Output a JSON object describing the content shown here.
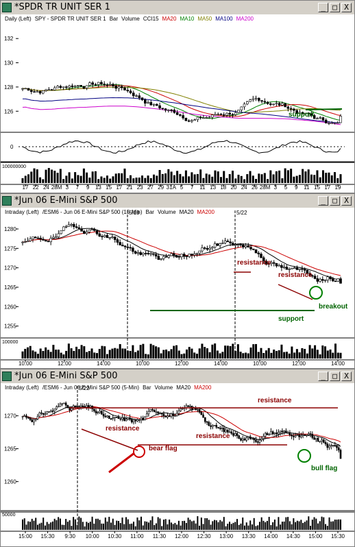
{
  "windows": [
    {
      "title": "*SPDR TR UNIT SER 1",
      "controls": [
        "_",
        "□",
        "X"
      ],
      "subtitle": [
        {
          "t": "Daily (Left)",
          "c": "#000000"
        },
        {
          "t": "SPY - SPDR TR UNIT SER 1",
          "c": "#000000"
        },
        {
          "t": "Bar",
          "c": "#000000"
        },
        {
          "t": "Volume",
          "c": "#000000"
        },
        {
          "t": "CCI15",
          "c": "#000000"
        },
        {
          "t": "MA20",
          "c": "#cc0000"
        },
        {
          "t": "MA10",
          "c": "#008000"
        },
        {
          "t": "MA50",
          "c": "#808000"
        },
        {
          "t": "MA100",
          "c": "#000080"
        },
        {
          "t": "MA200",
          "c": "#cc00cc"
        }
      ]
    },
    {
      "title": "*Jun 06  E-Mini S&P 500",
      "controls": [
        "_",
        "□",
        "X"
      ],
      "subtitle": [
        {
          "t": "Intraday (Left)",
          "c": "#000000"
        },
        {
          "t": "/ESM6 - Jun 06  E-Mini S&P 500 (15-Min)",
          "c": "#000000"
        },
        {
          "t": "Bar",
          "c": "#000000"
        },
        {
          "t": "Volume",
          "c": "#000000"
        },
        {
          "t": "MA20",
          "c": "#000000"
        },
        {
          "t": "MA200",
          "c": "#cc0000"
        }
      ]
    },
    {
      "title": "*Jun 06  E-Mini S&P 500",
      "controls": [
        "_",
        "□",
        "X"
      ],
      "subtitle": [
        {
          "t": "Intraday (Left)",
          "c": "#000000"
        },
        {
          "t": "/ESM6 - Jun 06  E-Mini S&P 500 (5-Min)",
          "c": "#000000"
        },
        {
          "t": "Bar",
          "c": "#000000"
        },
        {
          "t": "Volume",
          "c": "#000000"
        },
        {
          "t": "MA20",
          "c": "#000000"
        },
        {
          "t": "MA200",
          "c": "#cc0000"
        }
      ]
    }
  ],
  "chart_data": [
    {
      "type": "bar",
      "kind": "ohlc-price",
      "timeframe": "daily",
      "y_ticks": [
        126,
        128,
        130,
        132
      ],
      "ylim": [
        124.6,
        133.2
      ],
      "x_ticks": [
        "17",
        "22",
        "24",
        "28M",
        "3",
        "7",
        "9",
        "13",
        "15",
        "17",
        "21",
        "23",
        "27",
        "29",
        "31A",
        "5",
        "7",
        "11",
        "13",
        "18",
        "20",
        "24",
        "26",
        "28M",
        "3",
        "5",
        "9",
        "11",
        "15",
        "17",
        "19"
      ],
      "close_start": 127.9,
      "close_end": 125.6,
      "mas": [
        {
          "name": "MA10",
          "color": "#008000"
        },
        {
          "name": "MA20",
          "color": "#cc0000"
        },
        {
          "name": "MA50",
          "color": "#808000"
        },
        {
          "name": "MA100",
          "color": "#000080"
        },
        {
          "name": "MA200",
          "color": "#cc00cc"
        }
      ],
      "annotations": [
        {
          "text": "support",
          "color": "#006400"
        }
      ],
      "indicator": {
        "name": "CCI15",
        "y_ticks": [
          0
        ]
      },
      "volume": {
        "y_ticks": [
          "100000000"
        ]
      }
    },
    {
      "type": "bar",
      "kind": "ohlc-price",
      "timeframe": "15-min",
      "y_ticks": [
        1255,
        1260,
        1265,
        1270,
        1275,
        1280
      ],
      "ylim": [
        1253,
        1283
      ],
      "x_ticks": [
        "10:00",
        "12:00",
        "14:00",
        "10:00",
        "12:00",
        "14:00",
        "10:00",
        "12:00",
        "14:00"
      ],
      "session_markers": [
        "5/19",
        "5/22"
      ],
      "close_start": 1276,
      "close_end": 1266,
      "mas": [
        {
          "name": "MA20",
          "color": "#000000"
        },
        {
          "name": "MA200",
          "color": "#cc0000"
        }
      ],
      "annotations": [
        {
          "text": "resistance",
          "color": "#8b0000"
        },
        {
          "text": "resistance",
          "color": "#8b0000"
        },
        {
          "text": "support",
          "color": "#006400"
        },
        {
          "text": "breakout",
          "color": "#006400"
        }
      ],
      "volume": {
        "y_ticks": [
          "100000"
        ]
      }
    },
    {
      "type": "bar",
      "kind": "ohlc-price",
      "timeframe": "5-min",
      "y_ticks": [
        1260,
        1265,
        1270
      ],
      "ylim": [
        1256,
        1273.5
      ],
      "x_ticks": [
        "15:00",
        "15:30",
        "9:30",
        "10:00",
        "10:30",
        "11:00",
        "11:30",
        "12:00",
        "12:30",
        "13:00",
        "13:30",
        "14:00",
        "14:30",
        "15:00",
        "15:30"
      ],
      "session_markers": [
        "5/22"
      ],
      "close_start": 1270,
      "close_end": 1263.5,
      "mas": [
        {
          "name": "MA20",
          "color": "#000000"
        },
        {
          "name": "MA200",
          "color": "#cc0000"
        }
      ],
      "annotations": [
        {
          "text": "resistance",
          "color": "#8b0000"
        },
        {
          "text": "resistance",
          "color": "#8b0000"
        },
        {
          "text": "resistance",
          "color": "#8b0000"
        },
        {
          "text": "bear flag",
          "color": "#8b0000"
        },
        {
          "text": "bull flag",
          "color": "#006400"
        }
      ],
      "volume": {
        "y_ticks": [
          "50000"
        ]
      }
    }
  ]
}
